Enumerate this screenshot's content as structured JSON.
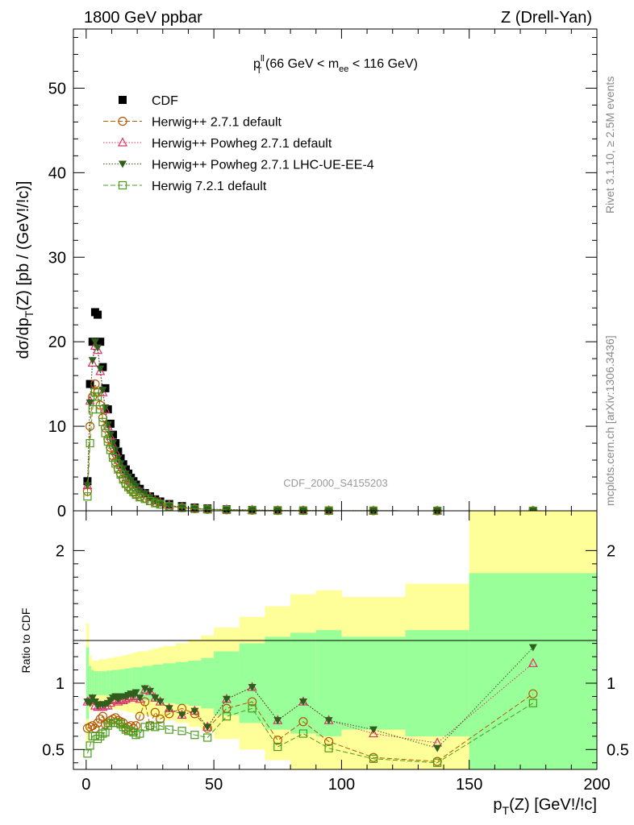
{
  "header": {
    "left": "1800 GeV ppbar",
    "right": "Z (Drell-Yan)"
  },
  "plot_title": {
    "text": "p_T^ll (66 GeV < m_ee < 116 GeV)"
  },
  "side_labels": {
    "rivet": "Rivet 3.1.10, ≥ 2.5M events",
    "mcplots": "mcplots.cern.ch [arXiv:1306.3436]",
    "analysis": "CDF_2000_S4155203"
  },
  "axes": {
    "main_ylabel": "dσ/dp_T(Z) [pb / (GeV!/!c)]",
    "ratio_ylabel": "Ratio to CDF",
    "xlabel": "p_T(Z) [GeV!/!c]"
  },
  "colors": {
    "cdf": "#000000",
    "herwigpp": "#b35900",
    "powheg": "#d6336c",
    "powheg_lhc": "#2f5e1d",
    "herwig7": "#4a9c1a",
    "band_inner": "#99ff99",
    "band_outer": "#ffff99"
  },
  "chart_data": [
    {
      "type": "scatter",
      "panel": "main",
      "xlim": [
        -5,
        200
      ],
      "ylim": [
        0,
        57
      ],
      "x_ticks": [
        0,
        50,
        100,
        150,
        200
      ],
      "y_ticks": [
        0,
        10,
        20,
        30,
        40,
        50
      ],
      "series": [
        {
          "name": "CDF",
          "key": "cdf",
          "marker": "square",
          "line": "none",
          "x": [
            0.5,
            1.5,
            2.5,
            3.5,
            4.5,
            5.5,
            6.5,
            7.5,
            8.5,
            9.5,
            10.5,
            11.5,
            12.5,
            13.5,
            14.5,
            15.5,
            16.5,
            17.5,
            18.5,
            19.5,
            21,
            23,
            25,
            27,
            29,
            32.5,
            37.5,
            42.5,
            47.5,
            55,
            65,
            75,
            85,
            95,
            112.5,
            137.5,
            175
          ],
          "y": [
            3.5,
            15.0,
            20.0,
            23.5,
            23.2,
            20.0,
            17.0,
            14.5,
            12.0,
            10.3,
            9.0,
            8.0,
            7.0,
            6.2,
            5.5,
            4.9,
            4.4,
            3.9,
            3.5,
            3.1,
            2.6,
            2.1,
            1.7,
            1.35,
            1.1,
            0.8,
            0.55,
            0.38,
            0.27,
            0.17,
            0.1,
            0.06,
            0.04,
            0.025,
            0.012,
            0.004,
            0.001
          ]
        },
        {
          "name": "Herwig++ 2.7.1 default",
          "key": "herwigpp",
          "marker": "circle",
          "line": "dashed",
          "x": [
            0.5,
            1.5,
            2.5,
            3.5,
            4.5,
            5.5,
            6.5,
            7.5,
            8.5,
            9.5,
            10.5,
            11.5,
            12.5,
            13.5,
            14.5,
            15.5,
            16.5,
            17.5,
            18.5,
            19.5,
            21,
            23,
            25,
            27,
            29,
            32.5,
            37.5,
            42.5,
            47.5,
            55,
            65,
            75,
            85,
            95,
            112.5,
            137.5,
            175
          ],
          "y": [
            2.3,
            10.0,
            13.5,
            15.0,
            14.0,
            12.5,
            11.0,
            9.8,
            8.5,
            7.5,
            6.5,
            5.8,
            5.0,
            4.4,
            3.8,
            3.2,
            2.9,
            2.6,
            2.3,
            2.0,
            1.7,
            1.5,
            1.2,
            1.0,
            0.8,
            0.55,
            0.37,
            0.25,
            0.16,
            0.11,
            0.07,
            0.035,
            0.028,
            0.015,
            0.006,
            0.0018,
            0.0009
          ]
        },
        {
          "name": "Herwig++ Powheg 2.7.1 default",
          "key": "powheg",
          "marker": "triangle-up",
          "line": "dotted",
          "x": [
            0.5,
            1.5,
            2.5,
            3.5,
            4.5,
            5.5,
            6.5,
            7.5,
            8.5,
            9.5,
            10.5,
            11.5,
            12.5,
            13.5,
            14.5,
            15.5,
            16.5,
            17.5,
            18.5,
            19.5,
            21,
            23,
            25,
            27,
            29,
            32.5,
            37.5,
            42.5,
            47.5,
            55,
            65,
            75,
            85,
            95,
            112.5,
            137.5,
            175
          ],
          "y": [
            3.0,
            13.0,
            17.5,
            19.5,
            19.0,
            16.5,
            14.0,
            12.0,
            10.0,
            8.8,
            7.8,
            7.0,
            6.0,
            5.4,
            4.8,
            4.3,
            3.9,
            3.5,
            3.1,
            2.8,
            2.3,
            2.0,
            1.6,
            1.2,
            0.95,
            0.65,
            0.42,
            0.3,
            0.18,
            0.15,
            0.097,
            0.043,
            0.034,
            0.018,
            0.0074,
            0.0022,
            0.00115
          ]
        },
        {
          "name": "Herwig++ Powheg 2.7.1 LHC-UE-EE-4",
          "key": "powheg_lhc",
          "marker": "triangle-down",
          "line": "dotted",
          "x": [
            0.5,
            1.5,
            2.5,
            3.5,
            4.5,
            5.5,
            6.5,
            7.5,
            8.5,
            9.5,
            10.5,
            11.5,
            12.5,
            13.5,
            14.5,
            15.5,
            16.5,
            17.5,
            18.5,
            19.5,
            21,
            23,
            25,
            27,
            29,
            32.5,
            37.5,
            42.5,
            47.5,
            55,
            65,
            75,
            85,
            95,
            112.5,
            137.5,
            175
          ],
          "y": [
            3.0,
            12.8,
            17.8,
            20.0,
            19.3,
            16.8,
            14.3,
            12.2,
            10.2,
            9.0,
            8.0,
            7.2,
            6.2,
            5.6,
            5.0,
            4.4,
            4.0,
            3.6,
            3.2,
            2.9,
            2.35,
            2.05,
            1.6,
            1.2,
            0.95,
            0.65,
            0.42,
            0.3,
            0.18,
            0.15,
            0.097,
            0.043,
            0.034,
            0.018,
            0.0078,
            0.002,
            0.00125
          ]
        },
        {
          "name": "Herwig 7.2.1 default",
          "key": "herwig7",
          "marker": "square-open",
          "line": "dashed",
          "x": [
            0.5,
            1.5,
            2.5,
            3.5,
            4.5,
            5.5,
            6.5,
            7.5,
            8.5,
            9.5,
            10.5,
            11.5,
            12.5,
            13.5,
            14.5,
            15.5,
            16.5,
            17.5,
            18.5,
            19.5,
            21,
            23,
            25,
            27,
            29,
            32.5,
            37.5,
            42.5,
            47.5,
            55,
            65,
            75,
            85,
            95,
            112.5,
            137.5,
            175
          ],
          "y": [
            1.7,
            8.0,
            12.0,
            14.0,
            13.5,
            12.0,
            10.5,
            9.2,
            8.2,
            7.2,
            6.3,
            5.6,
            4.9,
            4.3,
            3.7,
            3.2,
            2.8,
            2.5,
            2.2,
            1.9,
            1.6,
            1.4,
            1.15,
            0.9,
            0.75,
            0.52,
            0.35,
            0.23,
            0.16,
            0.1,
            0.065,
            0.03,
            0.025,
            0.0125,
            0.005,
            0.0016,
            0.00085
          ]
        }
      ]
    },
    {
      "type": "scatter",
      "panel": "ratio",
      "xlim": [
        -5,
        200
      ],
      "ylim": [
        0.35,
        2.3
      ],
      "x_ticks": [
        0,
        50,
        100,
        150,
        200
      ],
      "y_ticks": [
        0.5,
        1,
        2
      ],
      "reference": 1.0,
      "bands": {
        "edges": [
          0,
          1,
          2,
          3,
          4,
          5,
          6,
          7,
          8,
          9,
          10,
          11,
          12,
          13,
          14,
          15,
          16,
          17,
          18,
          19,
          20,
          22,
          24,
          26,
          28,
          30,
          35,
          40,
          45,
          50,
          60,
          70,
          80,
          90,
          100,
          125,
          150,
          200
        ],
        "inner_half": [
          0.27,
          0.13,
          0.1,
          0.09,
          0.09,
          0.09,
          0.09,
          0.09,
          0.095,
          0.095,
          0.1,
          0.1,
          0.1,
          0.105,
          0.105,
          0.11,
          0.11,
          0.115,
          0.12,
          0.12,
          0.12,
          0.13,
          0.13,
          0.14,
          0.14,
          0.15,
          0.16,
          0.17,
          0.19,
          0.24,
          0.3,
          0.35,
          0.38,
          0.4,
          0.35,
          0.4,
          0.83
        ],
        "outer_half": [
          0.45,
          0.21,
          0.17,
          0.17,
          0.17,
          0.18,
          0.18,
          0.18,
          0.19,
          0.19,
          0.19,
          0.2,
          0.2,
          0.2,
          0.21,
          0.21,
          0.22,
          0.22,
          0.23,
          0.23,
          0.24,
          0.24,
          0.25,
          0.26,
          0.27,
          0.28,
          0.3,
          0.33,
          0.36,
          0.42,
          0.5,
          0.58,
          0.67,
          0.7,
          0.65,
          0.75,
          1.35
        ]
      },
      "series": [
        {
          "name": "Herwig++ 2.7.1 default",
          "key": "herwigpp",
          "x": [
            0.5,
            1.5,
            2.5,
            3.5,
            4.5,
            5.5,
            6.5,
            7.5,
            8.5,
            9.5,
            10.5,
            11.5,
            12.5,
            13.5,
            14.5,
            15.5,
            16.5,
            17.5,
            18.5,
            19.5,
            21,
            23,
            25,
            27,
            29,
            32.5,
            37.5,
            42.5,
            47.5,
            55,
            65,
            75,
            85,
            95,
            112.5,
            137.5,
            175
          ],
          "y": [
            0.66,
            0.67,
            0.68,
            0.66,
            0.7,
            0.73,
            0.75,
            0.69,
            0.7,
            0.72,
            0.73,
            0.74,
            0.72,
            0.71,
            0.7,
            0.66,
            0.67,
            0.68,
            0.66,
            0.68,
            0.75,
            0.86,
            0.68,
            0.78,
            0.73,
            0.77,
            0.81,
            0.77,
            0.66,
            0.81,
            0.86,
            0.57,
            0.71,
            0.56,
            0.44,
            0.41,
            0.92
          ]
        },
        {
          "name": "Herwig++ Powheg 2.7.1 default",
          "key": "powheg",
          "x": [
            0.5,
            1.5,
            2.5,
            3.5,
            4.5,
            5.5,
            6.5,
            7.5,
            8.5,
            9.5,
            10.5,
            11.5,
            12.5,
            13.5,
            14.5,
            15.5,
            16.5,
            17.5,
            18.5,
            19.5,
            21,
            23,
            25,
            27,
            29,
            32.5,
            37.5,
            42.5,
            47.5,
            55,
            65,
            75,
            85,
            95,
            112.5,
            137.5,
            175
          ],
          "y": [
            0.86,
            0.87,
            0.88,
            0.83,
            0.82,
            0.83,
            0.82,
            0.83,
            0.83,
            0.85,
            0.87,
            0.88,
            0.86,
            0.87,
            0.87,
            0.88,
            0.89,
            0.9,
            0.89,
            0.9,
            0.88,
            0.95,
            0.94,
            0.89,
            0.86,
            0.81,
            0.76,
            0.79,
            0.67,
            0.88,
            0.97,
            0.72,
            0.86,
            0.72,
            0.62,
            0.55,
            1.15
          ]
        },
        {
          "name": "Herwig++ Powheg 2.7.1 LHC-UE-EE-4",
          "key": "powheg_lhc",
          "x": [
            0.5,
            1.5,
            2.5,
            3.5,
            4.5,
            5.5,
            6.5,
            7.5,
            8.5,
            9.5,
            10.5,
            11.5,
            12.5,
            13.5,
            14.5,
            15.5,
            16.5,
            17.5,
            18.5,
            19.5,
            21,
            23,
            25,
            27,
            29,
            32.5,
            37.5,
            42.5,
            47.5,
            55,
            65,
            75,
            85,
            95,
            112.5,
            137.5,
            175
          ],
          "y": [
            0.86,
            0.85,
            0.89,
            0.86,
            0.83,
            0.84,
            0.84,
            0.84,
            0.85,
            0.87,
            0.89,
            0.9,
            0.88,
            0.9,
            0.9,
            0.9,
            0.91,
            0.92,
            0.91,
            0.93,
            0.89,
            0.96,
            0.94,
            0.89,
            0.86,
            0.81,
            0.76,
            0.79,
            0.67,
            0.88,
            0.97,
            0.72,
            0.86,
            0.72,
            0.65,
            0.51,
            1.27
          ]
        },
        {
          "name": "Herwig 7.2.1 default",
          "key": "herwig7",
          "x": [
            0.5,
            1.5,
            2.5,
            3.5,
            4.5,
            5.5,
            6.5,
            7.5,
            8.5,
            9.5,
            10.5,
            11.5,
            12.5,
            13.5,
            14.5,
            15.5,
            16.5,
            17.5,
            18.5,
            19.5,
            21,
            23,
            25,
            27,
            29,
            32.5,
            37.5,
            42.5,
            47.5,
            55,
            65,
            75,
            85,
            95,
            112.5,
            137.5,
            175
          ],
          "y": [
            0.47,
            0.53,
            0.6,
            0.6,
            0.58,
            0.6,
            0.62,
            0.63,
            0.68,
            0.7,
            0.7,
            0.7,
            0.7,
            0.69,
            0.67,
            0.65,
            0.64,
            0.64,
            0.63,
            0.61,
            0.62,
            0.67,
            0.68,
            0.67,
            0.68,
            0.65,
            0.64,
            0.61,
            0.59,
            0.75,
            0.81,
            0.52,
            0.62,
            0.51,
            0.43,
            0.4,
            0.85
          ]
        }
      ]
    }
  ]
}
